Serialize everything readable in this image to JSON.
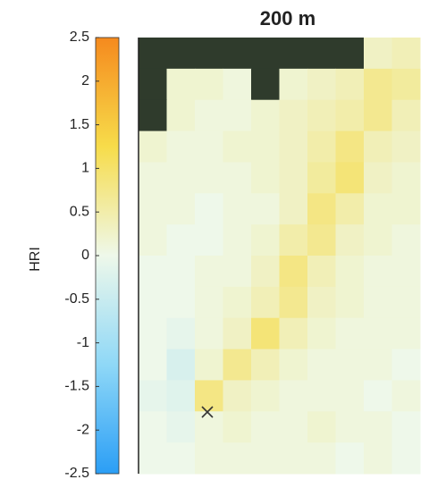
{
  "chart_data": {
    "type": "heatmap",
    "title": "200 m",
    "colorbar_label": "HRI",
    "clim": [
      -2.5,
      2.5
    ],
    "cticks": [
      2.5,
      2,
      1.5,
      1,
      0.5,
      0,
      -0.5,
      -1,
      -1.5,
      -2,
      -2.5
    ],
    "colormap": [
      "#2b9ef5",
      "#8fd8f7",
      "#eef8ea",
      "#f7dc4a",
      "#f58a1e"
    ],
    "z": [
      [
        null,
        null,
        null,
        null,
        null,
        null,
        null,
        null,
        0.3,
        0.4
      ],
      [
        null,
        0.2,
        0.2,
        0.1,
        null,
        0.2,
        0.3,
        0.4,
        0.7,
        0.6
      ],
      [
        null,
        0.2,
        0.1,
        0.1,
        0.2,
        0.3,
        0.4,
        0.5,
        0.7,
        0.4
      ],
      [
        0.2,
        0.1,
        0.1,
        0.2,
        0.2,
        0.3,
        0.5,
        0.8,
        0.4,
        0.3
      ],
      [
        0.1,
        0.1,
        0.1,
        0.1,
        0.2,
        0.3,
        0.6,
        0.9,
        0.3,
        0.2
      ],
      [
        0.1,
        0.1,
        0.0,
        0.1,
        0.1,
        0.3,
        0.8,
        0.5,
        0.2,
        0.2
      ],
      [
        0.1,
        0.0,
        0.0,
        0.1,
        0.2,
        0.5,
        0.7,
        0.3,
        0.2,
        0.1
      ],
      [
        0.0,
        0.0,
        0.1,
        0.1,
        0.3,
        0.8,
        0.4,
        0.2,
        0.1,
        0.1
      ],
      [
        0.0,
        0.0,
        0.1,
        0.2,
        0.4,
        0.7,
        0.3,
        0.2,
        0.1,
        0.1
      ],
      [
        0.0,
        -0.1,
        0.1,
        0.3,
        0.9,
        0.4,
        0.2,
        0.1,
        0.1,
        0.1
      ],
      [
        0.0,
        -0.3,
        0.2,
        0.7,
        0.4,
        0.2,
        0.1,
        0.1,
        0.1,
        0.0
      ],
      [
        -0.1,
        -0.2,
        0.8,
        0.3,
        0.2,
        0.1,
        0.1,
        0.1,
        0.0,
        0.1
      ],
      [
        0.0,
        -0.1,
        0.1,
        0.2,
        0.1,
        0.1,
        0.2,
        0.1,
        0.1,
        0.0
      ],
      [
        0.0,
        0.0,
        0.1,
        0.1,
        0.1,
        0.1,
        0.1,
        0.0,
        0.1,
        0.0
      ]
    ]
  }
}
